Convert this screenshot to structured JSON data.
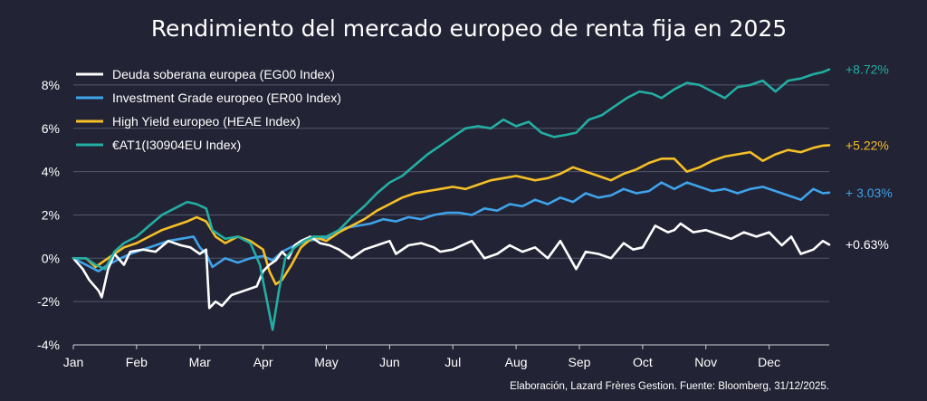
{
  "chart_data": {
    "type": "line",
    "title": "Rendimiento del mercado europeo de renta fija en 2025",
    "ylim": [
      -4,
      9
    ],
    "yticks": [
      -4,
      -2,
      0,
      2,
      4,
      6,
      8
    ],
    "ytick_labels": [
      "-4%",
      "-2%",
      "0%",
      "2%",
      "4%",
      "6%",
      "8%"
    ],
    "xlim": [
      0,
      11.95
    ],
    "x_tick_labels": [
      "Jan",
      "Feb",
      "Mar",
      "Apr",
      "May",
      "Jun",
      "Jul",
      "Aug",
      "Sep",
      "Oct",
      "Nov",
      "Dec"
    ],
    "grid": "horizontal",
    "legend_position": "top-left",
    "source": "Elaboración, Lazard Frères Gestion. Fuente: Bloomberg, 31/12/2025.",
    "series": [
      {
        "name": "Deuda soberana europea (EG00 Index)",
        "color": "#ffffff",
        "end_label": "+0.63%",
        "x": [
          0,
          0.15,
          0.25,
          0.4,
          0.45,
          0.55,
          0.65,
          0.8,
          0.9,
          1.1,
          1.3,
          1.5,
          1.7,
          1.85,
          2.0,
          2.1,
          2.15,
          2.25,
          2.35,
          2.5,
          2.7,
          2.9,
          3.0,
          3.1,
          3.2,
          3.3,
          3.4,
          3.5,
          3.6,
          3.75,
          3.9,
          4.05,
          4.2,
          4.4,
          4.6,
          4.8,
          5.0,
          5.1,
          5.3,
          5.5,
          5.7,
          5.8,
          6.0,
          6.3,
          6.5,
          6.7,
          6.9,
          7.1,
          7.3,
          7.5,
          7.7,
          7.95,
          8.1,
          8.3,
          8.5,
          8.7,
          8.85,
          9.0,
          9.2,
          9.4,
          9.5,
          9.6,
          9.8,
          10.0,
          10.2,
          10.4,
          10.6,
          10.8,
          11.0,
          11.2,
          11.35,
          11.5,
          11.7,
          11.85,
          11.95
        ],
        "values": [
          0,
          -0.5,
          -1.0,
          -1.5,
          -1.8,
          -0.5,
          0.2,
          -0.3,
          0.3,
          0.4,
          0.3,
          0.8,
          0.6,
          0.5,
          0.2,
          0.4,
          -2.3,
          -2.0,
          -2.2,
          -1.7,
          -1.5,
          -1.3,
          -0.6,
          -0.3,
          -0.1,
          0.3,
          0.0,
          0.6,
          0.8,
          1.0,
          0.7,
          0.6,
          0.4,
          0.0,
          0.4,
          0.6,
          0.8,
          0.2,
          0.6,
          0.7,
          0.5,
          0.3,
          0.4,
          0.8,
          0.0,
          0.2,
          0.6,
          0.3,
          0.5,
          0.0,
          0.8,
          -0.5,
          0.3,
          0.2,
          0.0,
          0.7,
          0.4,
          0.5,
          1.5,
          1.2,
          1.3,
          1.6,
          1.2,
          1.3,
          1.1,
          0.9,
          1.2,
          1.0,
          1.2,
          0.6,
          1.0,
          0.2,
          0.4,
          0.8,
          0.63
        ]
      },
      {
        "name": "Investment Grade europeo (ER00 Index)",
        "color": "#3fa3ea",
        "end_label": "+ 3.03%",
        "x": [
          0,
          0.2,
          0.4,
          0.55,
          0.75,
          0.9,
          1.1,
          1.3,
          1.5,
          1.7,
          1.9,
          2.0,
          2.1,
          2.2,
          2.4,
          2.6,
          2.8,
          3.0,
          3.15,
          3.3,
          3.5,
          3.7,
          3.9,
          4.1,
          4.3,
          4.5,
          4.7,
          4.9,
          5.1,
          5.3,
          5.5,
          5.7,
          5.9,
          6.1,
          6.3,
          6.5,
          6.7,
          6.9,
          7.1,
          7.3,
          7.5,
          7.7,
          7.9,
          8.1,
          8.3,
          8.5,
          8.7,
          8.9,
          9.1,
          9.3,
          9.5,
          9.7,
          9.9,
          10.1,
          10.3,
          10.5,
          10.7,
          10.9,
          11.1,
          11.3,
          11.5,
          11.7,
          11.85,
          11.95
        ],
        "values": [
          0,
          -0.3,
          -0.6,
          -0.3,
          0.0,
          0.2,
          0.4,
          0.6,
          0.8,
          0.9,
          1.0,
          0.5,
          0.2,
          -0.4,
          0.0,
          -0.2,
          0.0,
          0.1,
          -0.1,
          0.3,
          0.6,
          0.8,
          0.9,
          1.0,
          1.4,
          1.5,
          1.6,
          1.8,
          1.7,
          1.9,
          1.8,
          2.0,
          2.1,
          2.1,
          2.0,
          2.3,
          2.2,
          2.5,
          2.4,
          2.7,
          2.5,
          2.8,
          2.6,
          3.0,
          2.8,
          2.9,
          3.2,
          3.0,
          3.1,
          3.5,
          3.2,
          3.5,
          3.3,
          3.1,
          3.2,
          3.0,
          3.2,
          3.3,
          3.1,
          2.9,
          2.7,
          3.2,
          3.0,
          3.03
        ]
      },
      {
        "name": "High Yield europeo (HEAE Index)",
        "color": "#f6bf26",
        "end_label": "+5.22%",
        "x": [
          0,
          0.2,
          0.35,
          0.5,
          0.65,
          0.8,
          1.0,
          1.2,
          1.4,
          1.6,
          1.8,
          1.95,
          2.1,
          2.25,
          2.4,
          2.6,
          2.8,
          3.0,
          3.1,
          3.2,
          3.3,
          3.45,
          3.6,
          3.8,
          4.0,
          4.2,
          4.4,
          4.6,
          4.8,
          5.0,
          5.2,
          5.4,
          5.6,
          5.8,
          6.0,
          6.2,
          6.4,
          6.6,
          6.8,
          7.0,
          7.3,
          7.5,
          7.7,
          7.9,
          8.1,
          8.3,
          8.5,
          8.7,
          8.9,
          9.1,
          9.3,
          9.5,
          9.7,
          9.9,
          10.1,
          10.3,
          10.5,
          10.7,
          10.9,
          11.1,
          11.3,
          11.5,
          11.7,
          11.85,
          11.95
        ],
        "values": [
          0,
          0.0,
          -0.4,
          -0.1,
          0.2,
          0.5,
          0.7,
          1.0,
          1.3,
          1.5,
          1.7,
          1.9,
          1.7,
          1.0,
          0.7,
          1.0,
          0.8,
          0.4,
          -0.6,
          -1.2,
          -1.0,
          -0.3,
          0.5,
          1.0,
          0.8,
          1.2,
          1.5,
          1.8,
          2.2,
          2.5,
          2.8,
          3.0,
          3.1,
          3.2,
          3.3,
          3.2,
          3.4,
          3.6,
          3.7,
          3.8,
          3.6,
          3.7,
          3.9,
          4.2,
          4.0,
          3.8,
          3.6,
          3.9,
          4.1,
          4.4,
          4.6,
          4.6,
          4.0,
          4.2,
          4.5,
          4.7,
          4.8,
          4.9,
          4.5,
          4.8,
          5.0,
          4.9,
          5.1,
          5.2,
          5.22
        ]
      },
      {
        "name": "€AT1(I30904EU Index)",
        "color": "#23aea3",
        "end_label": "+8.72%",
        "x": [
          0,
          0.2,
          0.35,
          0.5,
          0.65,
          0.8,
          1.0,
          1.2,
          1.4,
          1.6,
          1.8,
          1.95,
          2.1,
          2.2,
          2.4,
          2.6,
          2.8,
          2.95,
          3.05,
          3.15,
          3.25,
          3.35,
          3.5,
          3.65,
          3.8,
          4.0,
          4.2,
          4.4,
          4.6,
          4.8,
          5.0,
          5.2,
          5.4,
          5.6,
          5.8,
          6.0,
          6.2,
          6.4,
          6.6,
          6.8,
          7.0,
          7.2,
          7.4,
          7.6,
          7.8,
          7.95,
          8.15,
          8.35,
          8.55,
          8.75,
          8.95,
          9.15,
          9.3,
          9.5,
          9.7,
          9.9,
          10.1,
          10.3,
          10.5,
          10.7,
          10.9,
          11.1,
          11.3,
          11.5,
          11.7,
          11.85,
          11.95
        ],
        "values": [
          0,
          0.0,
          -0.3,
          -0.5,
          0.3,
          0.7,
          1.0,
          1.5,
          2.0,
          2.3,
          2.6,
          2.5,
          2.3,
          1.3,
          0.9,
          1.0,
          0.7,
          -0.3,
          -1.8,
          -3.3,
          -1.5,
          0.0,
          0.5,
          0.8,
          1.0,
          1.0,
          1.3,
          1.9,
          2.4,
          3.0,
          3.5,
          3.8,
          4.3,
          4.8,
          5.2,
          5.6,
          6.0,
          6.1,
          6.0,
          6.4,
          6.1,
          6.3,
          5.8,
          5.6,
          5.7,
          5.8,
          6.4,
          6.6,
          7.0,
          7.4,
          7.7,
          7.6,
          7.4,
          7.8,
          8.1,
          8.0,
          7.7,
          7.4,
          7.9,
          8.0,
          8.2,
          7.7,
          8.2,
          8.3,
          8.5,
          8.6,
          8.72
        ]
      }
    ]
  }
}
